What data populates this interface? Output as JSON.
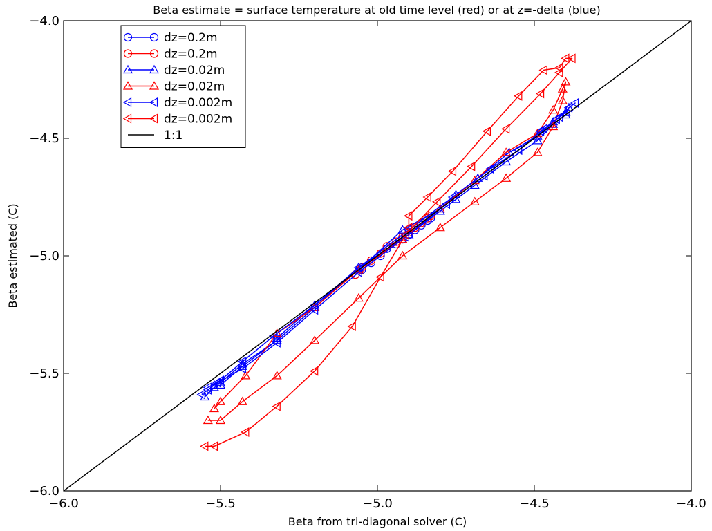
{
  "chart_data": {
    "type": "line",
    "title": "Beta estimate = surface temperature at old time level (red) or at z=-delta (blue)",
    "xlabel": "Beta from tri-diagonal solver (C)",
    "ylabel": "Beta estimated (C)",
    "xlim": [
      -6.0,
      -4.0
    ],
    "ylim": [
      -6.0,
      -4.0
    ],
    "xticks": [
      -6.0,
      -5.5,
      -5.0,
      -4.5,
      -4.0
    ],
    "yticks": [
      -6.0,
      -5.5,
      -5.0,
      -4.5,
      -4.0
    ],
    "xtick_labels": [
      "−6.0",
      "−5.5",
      "−5.0",
      "−4.5",
      "−4.0"
    ],
    "ytick_labels": [
      "−6.0",
      "−5.5",
      "−5.0",
      "−4.5",
      "−4.0"
    ],
    "grid": false,
    "legend_position": "top-left",
    "series": [
      {
        "name": "dz=0.2m",
        "color": "#0000ff",
        "marker": "circle",
        "x": [
          -5.07,
          -5.05,
          -5.02,
          -4.99,
          -4.97,
          -4.94,
          -4.92,
          -4.9,
          -4.88,
          -4.86,
          -4.84,
          -4.83
        ],
        "y": [
          -5.08,
          -5.06,
          -5.03,
          -5.0,
          -4.97,
          -4.95,
          -4.93,
          -4.91,
          -4.89,
          -4.87,
          -4.85,
          -4.84
        ]
      },
      {
        "name": "dz=0.2m",
        "color": "#ff0000",
        "marker": "circle",
        "x": [
          -5.07,
          -5.05,
          -5.02,
          -4.99,
          -4.97,
          -4.94,
          -4.92,
          -4.9,
          -4.88,
          -4.86,
          -4.84,
          -4.83
        ],
        "y": [
          -5.08,
          -5.05,
          -5.02,
          -4.99,
          -4.96,
          -4.94,
          -4.92,
          -4.9,
          -4.88,
          -4.86,
          -4.84,
          -4.83
        ]
      },
      {
        "name": "dz=0.02m",
        "color": "#0000ff",
        "marker": "triangle-up",
        "x": [
          -5.55,
          -5.52,
          -5.5,
          -5.43,
          -5.32,
          -5.2,
          -5.06,
          -4.9,
          -4.8,
          -4.75,
          -4.69,
          -4.59,
          -4.49,
          -4.44,
          -4.4,
          -4.39,
          -4.4,
          -4.44,
          -4.49,
          -4.58,
          -4.68,
          -4.75,
          -4.8,
          -4.92,
          -5.06,
          -5.2,
          -5.32,
          -5.32,
          -5.43,
          -5.5,
          -5.52
        ],
        "y": [
          -5.6,
          -5.56,
          -5.55,
          -5.47,
          -5.36,
          -5.22,
          -5.05,
          -4.91,
          -4.81,
          -4.76,
          -4.7,
          -4.6,
          -4.51,
          -4.44,
          -4.4,
          -4.37,
          -4.39,
          -4.43,
          -4.49,
          -4.56,
          -4.67,
          -4.74,
          -4.8,
          -4.89,
          -5.06,
          -5.21,
          -5.35,
          -5.36,
          -5.46,
          -5.54,
          -5.55
        ]
      },
      {
        "name": "dz=0.02m",
        "color": "#ff0000",
        "marker": "triangle-up",
        "x": [
          -5.54,
          -5.5,
          -5.43,
          -5.32,
          -5.2,
          -5.06,
          -4.92,
          -4.8,
          -4.69,
          -4.59,
          -4.49,
          -4.44,
          -4.41,
          -4.4,
          -4.41,
          -4.44,
          -4.49,
          -4.59,
          -4.69,
          -4.8,
          -4.92,
          -5.06,
          -5.2,
          -5.32,
          -5.42,
          -5.5,
          -5.52
        ],
        "y": [
          -5.7,
          -5.7,
          -5.62,
          -5.51,
          -5.36,
          -5.18,
          -5.0,
          -4.88,
          -4.77,
          -4.67,
          -4.56,
          -4.45,
          -4.34,
          -4.26,
          -4.29,
          -4.38,
          -4.48,
          -4.56,
          -4.68,
          -4.8,
          -4.93,
          -5.06,
          -5.22,
          -5.33,
          -5.51,
          -5.62,
          -5.65
        ]
      },
      {
        "name": "dz=0.002m",
        "color": "#0000ff",
        "marker": "triangle-left",
        "x": [
          -5.56,
          -5.54,
          -5.51,
          -5.43,
          -5.32,
          -5.2,
          -5.06,
          -4.91,
          -4.78,
          -4.66,
          -4.55,
          -4.47,
          -4.42,
          -4.39,
          -4.37,
          -4.39,
          -4.43,
          -4.48,
          -4.55,
          -4.64,
          -4.76,
          -4.9,
          -5.06,
          -5.2,
          -5.33,
          -5.43,
          -5.5,
          -5.54
        ],
        "y": [
          -5.59,
          -5.57,
          -5.54,
          -5.48,
          -5.37,
          -5.23,
          -5.07,
          -4.92,
          -4.78,
          -4.66,
          -4.55,
          -4.46,
          -4.41,
          -4.37,
          -4.35,
          -4.37,
          -4.42,
          -4.47,
          -4.55,
          -4.63,
          -4.75,
          -4.89,
          -5.05,
          -5.21,
          -5.34,
          -5.45,
          -5.53,
          -5.56
        ]
      },
      {
        "name": "dz=0.002m",
        "color": "#ff0000",
        "marker": "triangle-left",
        "x": [
          -5.55,
          -5.52,
          -5.42,
          -5.32,
          -5.2,
          -5.08,
          -4.99,
          -4.91,
          -4.81,
          -4.7,
          -4.59,
          -4.48,
          -4.42,
          -4.38,
          -4.4,
          -4.42,
          -4.47,
          -4.55,
          -4.65,
          -4.76,
          -4.84,
          -4.9,
          -4.9
        ],
        "y": [
          -5.81,
          -5.81,
          -5.75,
          -5.64,
          -5.49,
          -5.3,
          -5.09,
          -4.91,
          -4.77,
          -4.62,
          -4.46,
          -4.31,
          -4.22,
          -4.16,
          -4.16,
          -4.2,
          -4.21,
          -4.32,
          -4.47,
          -4.64,
          -4.75,
          -4.83,
          -4.88
        ]
      },
      {
        "name": "1:1",
        "color": "#000000",
        "marker": "none",
        "x": [
          -6.0,
          -4.0
        ],
        "y": [
          -6.0,
          -4.0
        ]
      }
    ]
  }
}
